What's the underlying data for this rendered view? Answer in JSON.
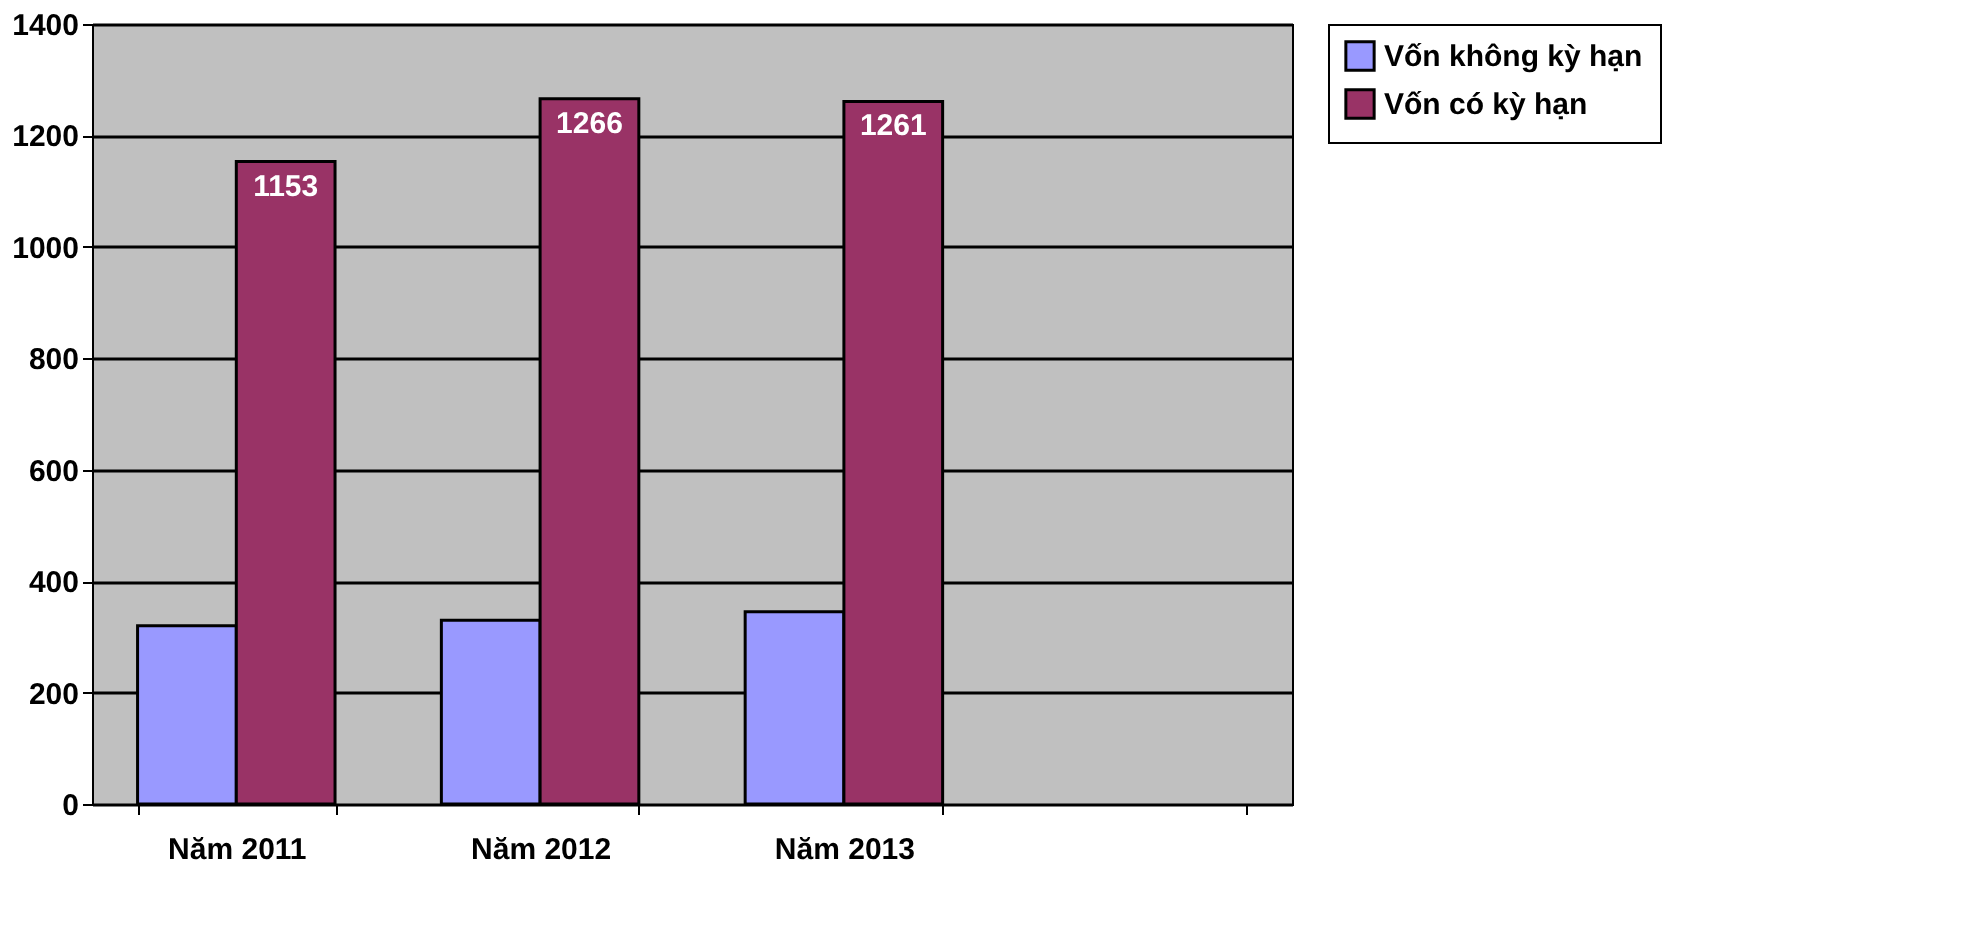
{
  "chart_data": {
    "type": "bar",
    "categories": [
      "Năm 2011",
      "Năm 2012",
      "Năm 2013",
      null
    ],
    "series": [
      {
        "name": "Vốn không kỳ hạn",
        "color": "#9999ff",
        "values": [
          320,
          330,
          345,
          null
        ]
      },
      {
        "name": "Vốn có kỳ hạn",
        "color": "#993366",
        "values": [
          1153,
          1266,
          1261,
          null
        ],
        "value_labels": [
          "1153",
          "1266",
          "1261",
          null
        ]
      }
    ],
    "ylim": [
      0,
      1400
    ],
    "yticks": [
      0,
      200,
      400,
      600,
      800,
      1000,
      1200,
      1400
    ],
    "grid": "y",
    "legend": "right"
  }
}
